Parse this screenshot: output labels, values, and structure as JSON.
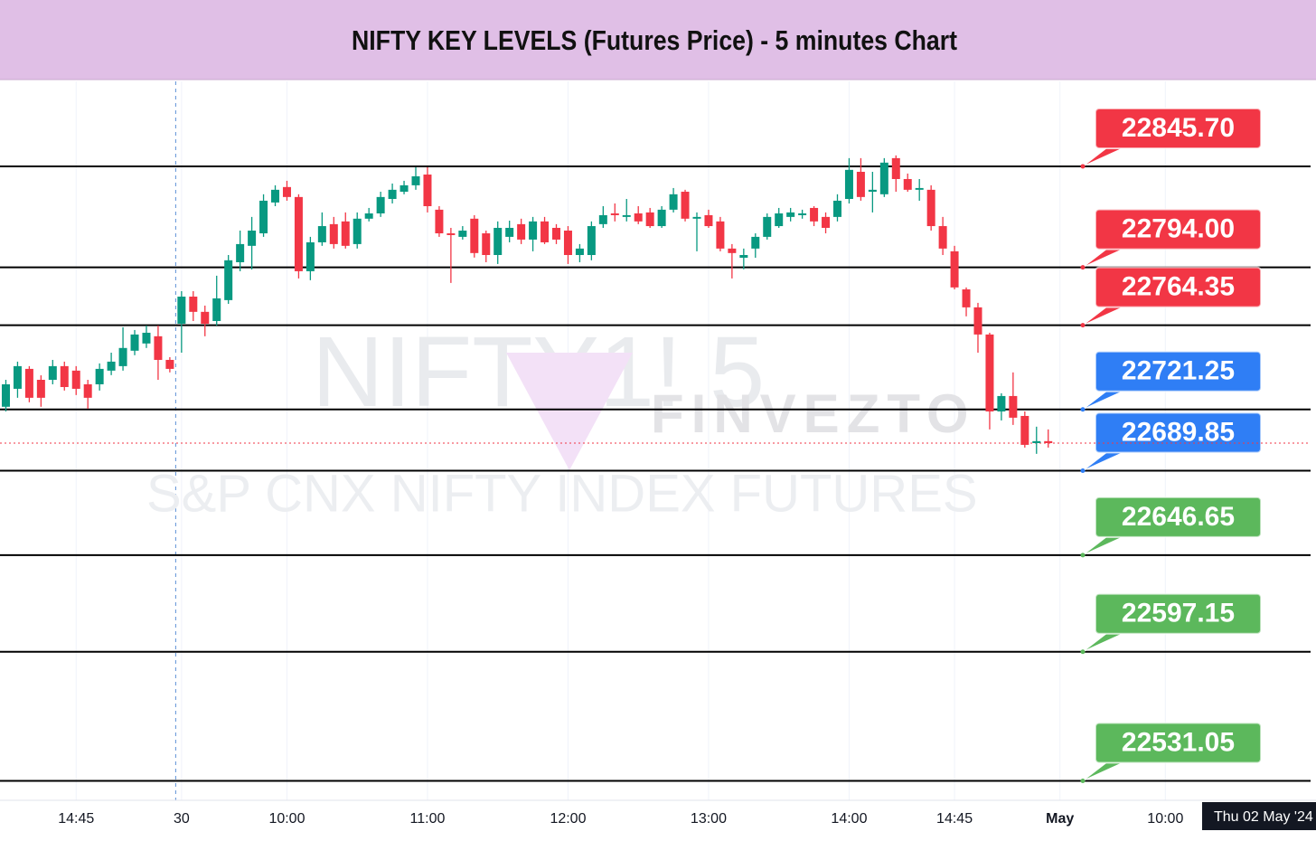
{
  "chart_data": {
    "type": "candlestick",
    "title": "NIFTY KEY LEVELS (Futures Price) - 5 minutes Chart",
    "watermarks": [
      "NIFTY1! 5",
      "FINVEZTO",
      "S&P CNX NIFTY INDEX FUTURES"
    ],
    "crosshair_label": "Thu 02 May '24",
    "xlim": [
      -0.5,
      111.4
    ],
    "ylim": [
      22521.1,
      22889.2
    ],
    "xticks": [
      {
        "value": 6,
        "label": "14:45"
      },
      {
        "value": 15,
        "label": "30"
      },
      {
        "value": 24,
        "label": "10:00"
      },
      {
        "value": 36,
        "label": "11:00"
      },
      {
        "value": 48,
        "label": "12:00"
      },
      {
        "value": 60,
        "label": "13:00"
      },
      {
        "value": 72,
        "label": "14:00"
      },
      {
        "value": 81,
        "label": "14:45"
      },
      {
        "value": 90,
        "label": "May"
      },
      {
        "value": 99,
        "label": "10:00"
      }
    ],
    "up_color": "#089981",
    "down_color": "#f23645",
    "current_price": 22704.0,
    "candles": {
      "open": [
        22722.6,
        22731.8,
        22742.0,
        22736.4,
        22736.4,
        22743.4,
        22741.1,
        22734.1,
        22734.1,
        22741.1,
        22743.4,
        22751.3,
        22755.0,
        22758.7,
        22746.6,
        22765.1,
        22779.0,
        22771.2,
        22766.5,
        22777.2,
        22796.6,
        22805.0,
        22811.4,
        22827.2,
        22835.1,
        22830.0,
        22792.0,
        22806.8,
        22816.1,
        22817.5,
        22805.9,
        22818.9,
        22821.6,
        22829.0,
        22832.7,
        22836.0,
        22841.5,
        22823.5,
        22811.4,
        22809.6,
        22818.9,
        22811.4,
        22800.3,
        22809.6,
        22816.1,
        22808.2,
        22817.5,
        22814.2,
        22812.8,
        22800.3,
        22800.3,
        22816.1,
        22821.6,
        22819.8,
        22821.6,
        22822.1,
        22815.1,
        22823.5,
        22832.7,
        22818.9,
        22820.7,
        22817.5,
        22803.6,
        22798.9,
        22803.6,
        22809.6,
        22815.1,
        22819.8,
        22820.7,
        22824.4,
        22819.8,
        22819.8,
        22829.0,
        22842.9,
        22832.7,
        22831.4,
        22849.9,
        22839.2,
        22833.7,
        22833.7,
        22815.1,
        22802.2,
        22782.7,
        22773.5,
        22759.6,
        22720.2,
        22728.1,
        22717.9,
        22704.0,
        22705.0
      ],
      "high": [
        22736.4,
        22745.7,
        22743.4,
        22738.7,
        22746.6,
        22745.7,
        22743.4,
        22736.4,
        22744.8,
        22750.3,
        22763.3,
        22761.9,
        22764.2,
        22764.2,
        22748.0,
        22781.8,
        22781.8,
        22774.4,
        22789.7,
        22800.3,
        22812.8,
        22819.8,
        22831.4,
        22836.0,
        22838.3,
        22831.4,
        22809.6,
        22822.1,
        22819.8,
        22822.1,
        22822.1,
        22824.4,
        22832.7,
        22836.9,
        22838.3,
        22845.2,
        22845.2,
        22825.3,
        22814.2,
        22815.1,
        22820.7,
        22812.8,
        22817.5,
        22817.9,
        22818.9,
        22819.8,
        22819.8,
        22816.1,
        22815.1,
        22805.9,
        22817.5,
        22825.3,
        22826.7,
        22829.0,
        22825.3,
        22824.4,
        22825.3,
        22834.6,
        22833.7,
        22822.1,
        22823.5,
        22819.8,
        22805.9,
        22803.6,
        22811.4,
        22821.6,
        22824.4,
        22824.4,
        22823.5,
        22825.3,
        22822.1,
        22831.4,
        22849.9,
        22849.9,
        22842.9,
        22849.9,
        22851.3,
        22842.0,
        22839.2,
        22836.0,
        22819.8,
        22805.0,
        22783.7,
        22775.8,
        22760.5,
        22729.5,
        22740.2,
        22720.2,
        22712.4,
        22711.0
      ],
      "low": [
        22720.2,
        22727.2,
        22724.9,
        22722.6,
        22734.1,
        22730.9,
        22728.6,
        22721.6,
        22730.9,
        22738.8,
        22741.1,
        22749.0,
        22752.7,
        22736.4,
        22740.2,
        22750.3,
        22766.5,
        22758.7,
        22764.2,
        22775.3,
        22792.0,
        22792.9,
        22809.6,
        22825.3,
        22828.1,
        22788.3,
        22787.4,
        22805.0,
        22803.6,
        22803.6,
        22803.6,
        22817.5,
        22819.8,
        22826.7,
        22831.4,
        22833.7,
        22822.1,
        22809.6,
        22786.0,
        22808.2,
        22799.0,
        22796.6,
        22795.7,
        22806.8,
        22805.9,
        22802.2,
        22805.9,
        22805.9,
        22795.7,
        22796.6,
        22797.6,
        22814.2,
        22817.5,
        22817.5,
        22816.1,
        22814.2,
        22814.2,
        22822.1,
        22817.5,
        22802.2,
        22814.2,
        22802.2,
        22788.3,
        22793.0,
        22798.9,
        22808.2,
        22814.2,
        22817.5,
        22818.9,
        22815.1,
        22811.4,
        22817.5,
        22826.7,
        22828.1,
        22822.1,
        22830.0,
        22832.7,
        22832.7,
        22828.1,
        22812.8,
        22800.3,
        22782.7,
        22768.9,
        22750.3,
        22711.0,
        22715.6,
        22713.3,
        22701.7,
        22698.5,
        22701.7
      ],
      "close": [
        22734.1,
        22743.4,
        22727.2,
        22727.2,
        22743.4,
        22732.7,
        22731.8,
        22727.2,
        22742.0,
        22745.7,
        22752.7,
        22759.6,
        22760.5,
        22746.6,
        22742.0,
        22779.0,
        22771.2,
        22765.1,
        22778.1,
        22797.6,
        22805.9,
        22812.8,
        22828.1,
        22833.7,
        22830.0,
        22792.0,
        22806.8,
        22815.1,
        22805.9,
        22805.0,
        22818.9,
        22821.6,
        22830.0,
        22833.7,
        22836.0,
        22840.6,
        22825.3,
        22811.4,
        22810.5,
        22812.8,
        22801.3,
        22800.3,
        22814.2,
        22814.2,
        22808.2,
        22817.5,
        22806.8,
        22808.2,
        22800.3,
        22803.6,
        22815.1,
        22820.7,
        22820.7,
        22820.7,
        22817.5,
        22815.1,
        22823.5,
        22831.4,
        22818.9,
        22819.8,
        22815.1,
        22803.6,
        22801.3,
        22800.3,
        22809.6,
        22819.8,
        22821.6,
        22822.1,
        22821.6,
        22817.5,
        22814.2,
        22828.1,
        22843.9,
        22830.0,
        22833.7,
        22847.6,
        22839.2,
        22833.7,
        22834.6,
        22815.1,
        22803.6,
        22783.7,
        22773.5,
        22759.6,
        22720.2,
        22728.1,
        22717.0,
        22703.1,
        22705.0,
        22704.0
      ]
    },
    "levels": {
      "values": [
        22845.7,
        22794.0,
        22764.35,
        22721.25,
        22689.85,
        22646.65,
        22597.15,
        22531.05
      ],
      "value_labels": [
        "22845.70",
        "22794.00",
        "22764.35",
        "22721.25",
        "22689.85",
        "22646.65",
        "22597.15",
        "22531.05"
      ],
      "colors": [
        "#f23645",
        "#f23645",
        "#f23645",
        "#2f7ef5",
        "#2f7ef5",
        "#5cb85c",
        "#5cb85c",
        "#5cb85c"
      ]
    }
  }
}
